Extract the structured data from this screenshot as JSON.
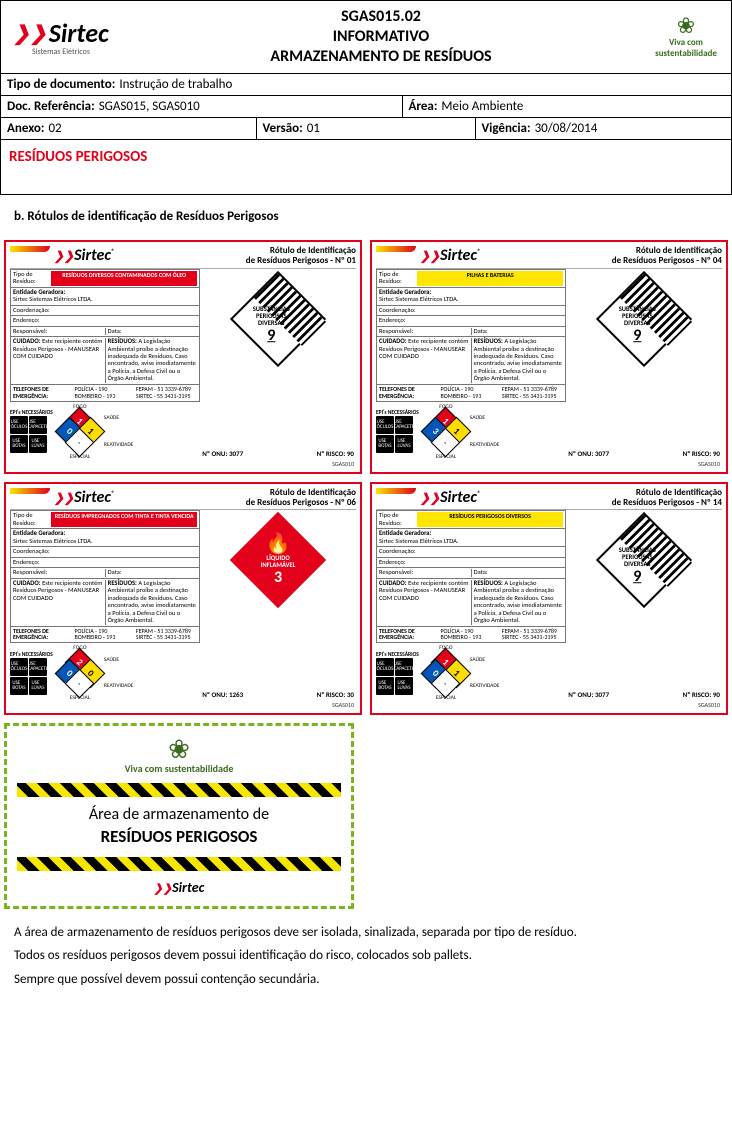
{
  "brand": {
    "name": "Sirtec",
    "subtitle": "Sistemas Elétricos",
    "eco_line1": "Viva com",
    "eco_line2": "sustentabilidade"
  },
  "header": {
    "code": "SGAS015.02",
    "line2": "INFORMATIVO",
    "line3": "ARMAZENAMENTO DE RESÍDUOS"
  },
  "meta": {
    "tipo_label": "Tipo de documento:",
    "tipo_val": "Instrução de trabalho",
    "ref_label": "Doc. Referência:",
    "ref_val": "SGAS015, SGAS010",
    "area_label": "Área:",
    "area_val": "Meio Ambiente",
    "anexo_label": "Anexo:",
    "anexo_val": "02",
    "versao_label": "Versão:",
    "versao_val": "01",
    "vig_label": "Vigência:",
    "vig_val": "30/08/2014"
  },
  "section_title": "RESÍDUOS PERIGOSOS",
  "item_b": "b.   Rótulos de identificação de Resíduos Perigosos",
  "label_common": {
    "rot_title_line1": "Rótulo de Identificação",
    "rot_title_line2_prefix": "de Resíduos Perigosos - Nº ",
    "tipo_res": "Tipo de Resíduo:",
    "entidade_l": "Entidade Geradora:",
    "entidade_v": "Sirtec Sistemas Elétricos LTDA.",
    "coord": "Coordenação:",
    "end": "Endereço:",
    "resp": "Responsável:",
    "data": "Data:",
    "cuidado_l": "CUIDADO:",
    "cuidado_v": "Este recipiente contém Resíduos Perigosos - MANUSEAR COM CUIDADO",
    "residuos_l": "RESÍDUOS:",
    "residuos_v": "A Legislação Ambiental proíbe a destinação inadequada de Resíduos. Caso encontrado, avise imediatamente a Polícia, a Defesa Civil ou o Órgão Ambiental.",
    "tel_l": "TELEFONES DE EMERGÊNCIA:",
    "tel_c1a": "POLÍCIA - 190",
    "tel_c1b": "BOMBEIRO - 193",
    "tel_c2a": "FEPAM - 51 3339-6789",
    "tel_c2b": "SIRTEC - 55 3431-3195",
    "epps_title": "EPI's NECESSÁRIOS",
    "epps": [
      "USE ÓCULOS",
      "USE CAPACETE",
      "USE BOTAS",
      "USE LUVAS"
    ],
    "fogo": "FOGO",
    "saude": "SAÚDE",
    "reatividade": "REATIVIDADE",
    "especial": "ESPECIAL",
    "onu_l": "Nº ONU:",
    "risco_l": "Nº RISCO:"
  },
  "labels": [
    {
      "num": "01",
      "tipo_val": "RESÍDUOS DIVERSOS CONTAMINADOS COM ÓLEO",
      "tipo_bg": "#e2001a",
      "tipo_color": "#ffffff",
      "nfpa": {
        "r": "1",
        "b": "0",
        "y": "1",
        "w": "-"
      },
      "haz_class": "9",
      "haz_text1": "SUBSTÂNCIAS PERIGOSAS",
      "haz_text2": "DIVERSAS",
      "onu": "3077",
      "risco": "90",
      "sgas": "SGAS010"
    },
    {
      "num": "04",
      "tipo_val": "PILHAS E BATERIAS",
      "tipo_bg": "#ffe600",
      "tipo_color": "#000000",
      "nfpa": {
        "r": "1",
        "b": "3",
        "y": "1",
        "w": "-"
      },
      "haz_class": "9",
      "haz_text1": "SUBSTÂNCIAS PERIGOSAS",
      "haz_text2": "DIVERSAS",
      "onu": "3077",
      "risco": "90",
      "sgas": "SGAS010"
    },
    {
      "num": "06",
      "tipo_val": "RESÍDUOS IMPREGNADOS COM TINTA E TINTA VENCIDA",
      "tipo_bg": "#e2001a",
      "tipo_color": "#ffffff",
      "nfpa": {
        "r": "2",
        "b": "0",
        "y": "0",
        "w": "-"
      },
      "haz_class": "3",
      "haz_text1": "LÍQUIDO",
      "haz_text2": "INFLAMÁVEL",
      "onu": "1263",
      "risco": "30",
      "sgas": "SGAS010"
    },
    {
      "num": "14",
      "tipo_val": "RESÍDUOS PERIGOSOS DIVERSOS",
      "tipo_bg": "#ffe600",
      "tipo_color": "#000000",
      "nfpa": {
        "r": "1",
        "b": "0",
        "y": "1",
        "w": "-"
      },
      "haz_class": "9",
      "haz_text1": "SUBSTÂNCIAS PERIGOSAS",
      "haz_text2": "DIVERSAS",
      "onu": "3077",
      "risco": "90",
      "sgas": "SGAS010"
    }
  ],
  "storage": {
    "line1": "Área de armazenamento de",
    "line2": "RESÍDUOS PERIGOSOS"
  },
  "notes": {
    "p1": "A área de armazenamento de resíduos perigosos deve ser isolada, sinalizada, separada por tipo de resíduo.",
    "p2": "Todos os resíduos perigosos devem possui identificação do risco, colocados sob pallets.",
    "p3": "Sempre que possível devem possui contenção secundária."
  },
  "colors": {
    "brand_red": "#e2001a",
    "eco_green": "#3a6b1f",
    "dash_green": "#7ab51d",
    "nfpa_blue": "#0057b8",
    "nfpa_yellow": "#ffdd00"
  }
}
